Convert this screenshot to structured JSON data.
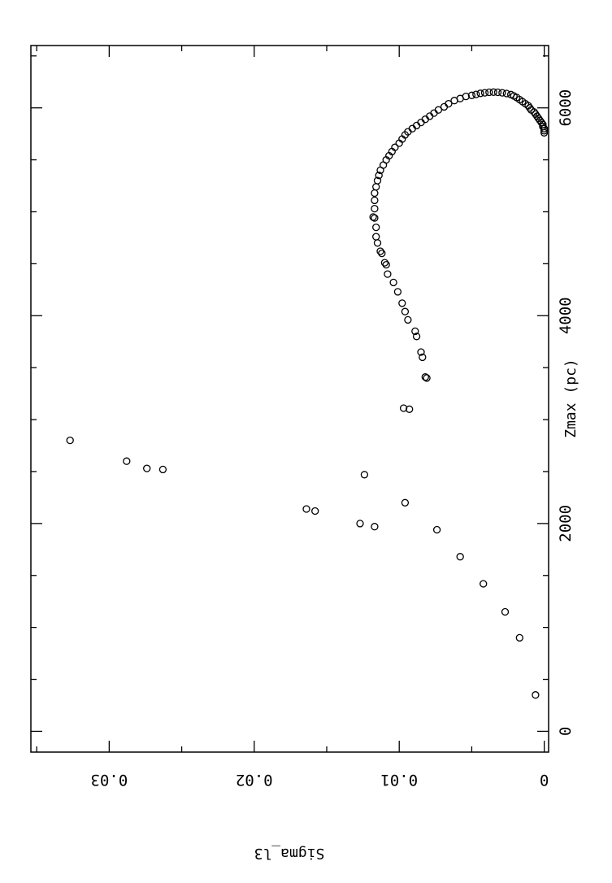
{
  "chart_data": {
    "type": "scatter",
    "orientation": "rotated-90",
    "title": "",
    "xlabel": "Zmax (pc)",
    "ylabel": "Sigma_l3",
    "xlim": [
      -200,
      6600
    ],
    "ylim": [
      -0.0003,
      0.0354
    ],
    "x_ticks": [
      0,
      2000,
      4000,
      6000
    ],
    "x_tick_labels": [
      "0",
      "2000",
      "4000",
      "6000"
    ],
    "y_ticks": [
      0,
      0.01,
      0.02,
      0.03
    ],
    "y_tick_labels": [
      "0",
      "0.01",
      "0.02",
      "0.03"
    ],
    "grid": false,
    "marker": "open-circle",
    "series": [
      {
        "points": [
          [
            350,
            0.0006
          ],
          [
            900,
            0.0017
          ],
          [
            1150,
            0.0027
          ],
          [
            1420,
            0.0042
          ],
          [
            1680,
            0.0058
          ],
          [
            1940,
            0.0074
          ],
          [
            2200,
            0.0096
          ],
          [
            2470,
            0.0124
          ],
          [
            1970,
            0.0117
          ],
          [
            2000,
            0.0127
          ],
          [
            2120,
            0.0158
          ],
          [
            2140,
            0.0164
          ],
          [
            2520,
            0.0263
          ],
          [
            2530,
            0.0274
          ],
          [
            2600,
            0.0288
          ],
          [
            2800,
            0.0327
          ],
          [
            3100,
            0.0093
          ],
          [
            3110,
            0.0097
          ],
          [
            3400,
            0.0081
          ],
          [
            3410,
            0.0082
          ],
          [
            3600,
            0.0084
          ],
          [
            3650,
            0.0085
          ],
          [
            3800,
            0.0088
          ],
          [
            3850,
            0.0089
          ],
          [
            3960,
            0.0094
          ],
          [
            4040,
            0.0096
          ],
          [
            4120,
            0.0098
          ],
          [
            4230,
            0.0101
          ],
          [
            4320,
            0.0104
          ],
          [
            4400,
            0.0108
          ],
          [
            4490,
            0.0109
          ],
          [
            4510,
            0.011
          ],
          [
            4600,
            0.0112
          ],
          [
            4620,
            0.0113
          ],
          [
            4700,
            0.0115
          ],
          [
            4760,
            0.0116
          ],
          [
            4850,
            0.0116
          ],
          [
            4940,
            0.0117
          ],
          [
            4950,
            0.0118
          ],
          [
            5030,
            0.0117
          ],
          [
            5110,
            0.0117
          ],
          [
            5180,
            0.0117
          ],
          [
            5240,
            0.0116
          ],
          [
            5300,
            0.0115
          ],
          [
            5350,
            0.0114
          ],
          [
            5400,
            0.0113
          ],
          [
            5450,
            0.0111
          ],
          [
            5500,
            0.0109
          ],
          [
            5540,
            0.0107
          ],
          [
            5580,
            0.0105
          ],
          [
            5620,
            0.0103
          ],
          [
            5660,
            0.01
          ],
          [
            5700,
            0.0098
          ],
          [
            5740,
            0.0096
          ],
          [
            5770,
            0.0094
          ],
          [
            5800,
            0.0091
          ],
          [
            5830,
            0.0088
          ],
          [
            5860,
            0.0085
          ],
          [
            5890,
            0.0082
          ],
          [
            5920,
            0.0079
          ],
          [
            5950,
            0.0076
          ],
          [
            5980,
            0.0073
          ],
          [
            6010,
            0.0069
          ],
          [
            6040,
            0.0066
          ],
          [
            6070,
            0.0062
          ],
          [
            6090,
            0.0058
          ],
          [
            6110,
            0.0054
          ],
          [
            6120,
            0.005
          ],
          [
            6130,
            0.0047
          ],
          [
            6140,
            0.0044
          ],
          [
            6145,
            0.0041
          ],
          [
            6150,
            0.0038
          ],
          [
            6152,
            0.0035
          ],
          [
            6150,
            0.0032
          ],
          [
            6145,
            0.0029
          ],
          [
            6138,
            0.0026
          ],
          [
            6128,
            0.0023
          ],
          [
            6115,
            0.0021
          ],
          [
            6100,
            0.0019
          ],
          [
            6080,
            0.0017
          ],
          [
            6060,
            0.0015
          ],
          [
            6040,
            0.0013
          ],
          [
            6020,
            0.0011
          ],
          [
            6000,
            0.001
          ],
          [
            5980,
            0.0009
          ],
          [
            5960,
            0.0007
          ],
          [
            5940,
            0.0006
          ],
          [
            5920,
            0.0005
          ],
          [
            5900,
            0.0004
          ],
          [
            5880,
            0.0003
          ],
          [
            5860,
            0.0002
          ],
          [
            5840,
            0.0001
          ],
          [
            5820,
            0.0001
          ],
          [
            5800,
            0.0
          ],
          [
            5780,
            0.0
          ],
          [
            5760,
            0.0
          ]
        ]
      }
    ]
  }
}
